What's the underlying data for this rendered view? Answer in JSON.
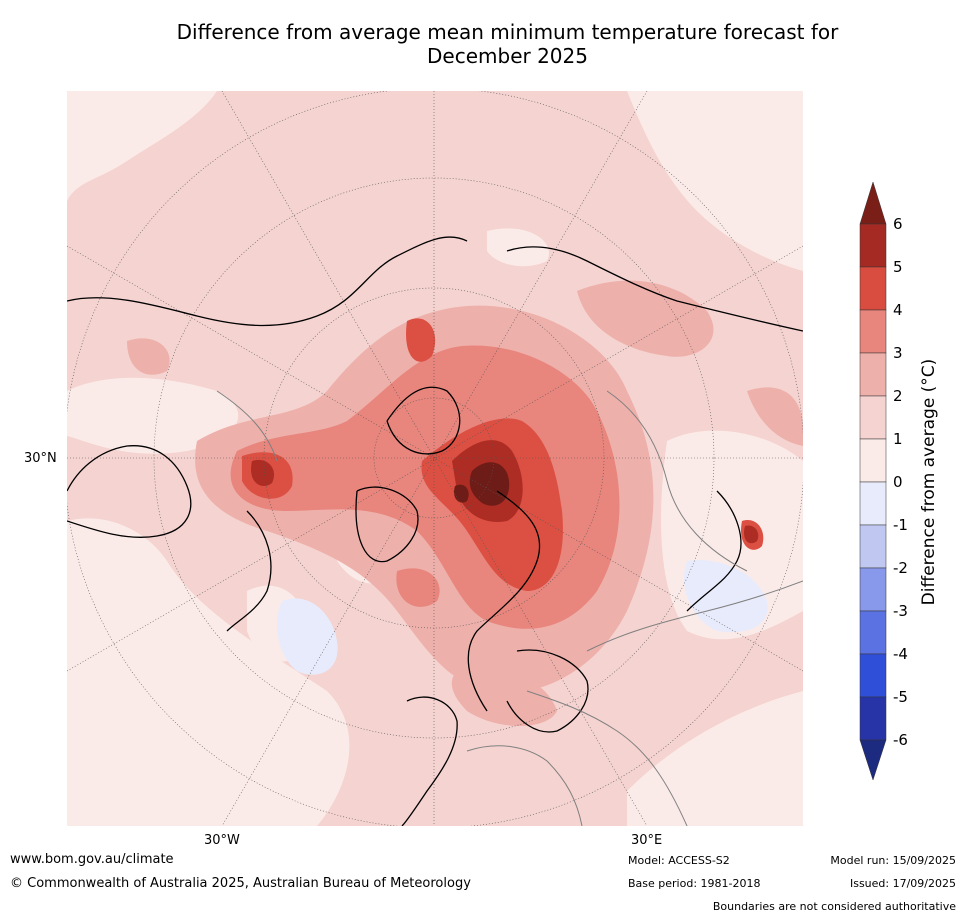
{
  "title_line1": "Difference from average mean minimum temperature forecast for",
  "title_line2": "December 2025",
  "map": {
    "projection": "north-polar-stereographic",
    "lat_label": "30°N",
    "lon_labels": [
      "30°W",
      "30°E"
    ],
    "colors": {
      "c0_1": "#fbebe8",
      "c1_2": "#f4d3d0",
      "c2_3": "#eeb0aa",
      "c3_4": "#e8857d",
      "c4_5": "#dc5043",
      "c5_6": "#ad2d24",
      "c6p": "#6e1c17",
      "cm0_1": "#e8ebfb",
      "coast": "#000000",
      "border": "#808080"
    }
  },
  "colorbar": {
    "title": "Difference from average (°C)",
    "ticks": [
      "6",
      "5",
      "4",
      "3",
      "2",
      "1",
      "0",
      "-1",
      "-2",
      "-3",
      "-4",
      "-5",
      "-6"
    ],
    "colors": [
      "#a52a24",
      "#d94c40",
      "#e8857d",
      "#eeb0aa",
      "#f4d3d0",
      "#fbebe8",
      "#e8ebfb",
      "#c0c8f2",
      "#8898ea",
      "#5a72e2",
      "#2f4fd9",
      "#2634a8"
    ],
    "top_arrow_color": "#7a1e18",
    "bottom_arrow_color": "#1c2a80"
  },
  "footer": {
    "url": "www.bom.gov.au/climate",
    "copyright": "© Commonwealth of Australia 2025, Australian Bureau of Meteorology",
    "model": "Model: ACCESS-S2",
    "base_period": "Base period: 1981-2018",
    "model_run": "Model run: 15/09/2025",
    "issued": "Issued: 17/09/2025",
    "disclaimer": "Boundaries are not considered authoritative"
  }
}
